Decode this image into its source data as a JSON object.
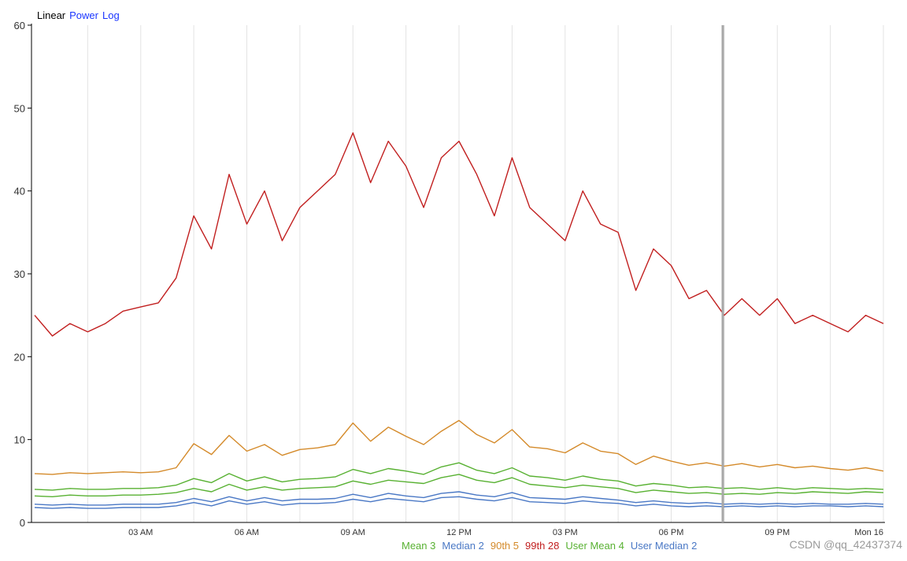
{
  "scale_switch": [
    {
      "label": "Linear",
      "active": true
    },
    {
      "label": "Power",
      "active": false
    },
    {
      "label": "Log",
      "active": false
    }
  ],
  "watermark": "CSDN @qq_42437374",
  "chart_data": {
    "type": "line",
    "title": "",
    "xlabel": "",
    "ylabel": "",
    "ylim": [
      0,
      60
    ],
    "yticks": [
      0,
      10,
      20,
      30,
      40,
      50,
      60
    ],
    "xlim_hours": [
      0,
      24
    ],
    "xtick_labels": [
      "03 AM",
      "06 AM",
      "09 AM",
      "12 PM",
      "03 PM",
      "06 PM",
      "09 PM",
      "Mon 16"
    ],
    "grid": true,
    "legend_placement": "bottom-right",
    "cursor_label": "",
    "series": [
      {
        "name": "Mean 3",
        "color": "#58b132",
        "values": [
          3.2,
          3.1,
          3.3,
          3.2,
          3.2,
          3.3,
          3.3,
          3.4,
          3.6,
          4.1,
          3.7,
          4.6,
          3.9,
          4.3,
          3.9,
          4.1,
          4.2,
          4.3,
          5.0,
          4.6,
          5.1,
          4.9,
          4.7,
          5.4,
          5.8,
          5.1,
          4.8,
          5.4,
          4.6,
          4.4,
          4.2,
          4.5,
          4.3,
          4.1,
          3.6,
          3.9,
          3.7,
          3.5,
          3.6,
          3.4,
          3.5,
          3.4,
          3.6,
          3.5,
          3.7,
          3.6,
          3.5,
          3.7,
          3.6
        ]
      },
      {
        "name": "Median 2",
        "color": "#4a78c5",
        "values": [
          1.8,
          1.7,
          1.8,
          1.7,
          1.7,
          1.8,
          1.8,
          1.8,
          2.0,
          2.4,
          2.0,
          2.6,
          2.2,
          2.5,
          2.1,
          2.3,
          2.3,
          2.4,
          2.8,
          2.5,
          2.9,
          2.7,
          2.5,
          3.0,
          3.1,
          2.8,
          2.6,
          3.0,
          2.5,
          2.4,
          2.3,
          2.6,
          2.4,
          2.3,
          2.0,
          2.2,
          2.0,
          1.9,
          2.0,
          1.9,
          2.0,
          1.9,
          2.0,
          1.9,
          2.0,
          2.0,
          1.9,
          2.0,
          1.9
        ]
      },
      {
        "name": "90th 5",
        "color": "#d48a2a",
        "values": [
          5.9,
          5.8,
          6.0,
          5.9,
          6.0,
          6.1,
          6.0,
          6.1,
          6.6,
          9.5,
          8.2,
          10.5,
          8.6,
          9.4,
          8.1,
          8.8,
          9.0,
          9.4,
          12.0,
          9.8,
          11.5,
          10.4,
          9.4,
          11.0,
          12.3,
          10.6,
          9.6,
          11.2,
          9.1,
          8.9,
          8.4,
          9.6,
          8.6,
          8.3,
          7.0,
          8.0,
          7.4,
          6.9,
          7.2,
          6.8,
          7.1,
          6.7,
          7.0,
          6.6,
          6.8,
          6.5,
          6.3,
          6.6,
          6.2
        ]
      },
      {
        "name": "99th 28",
        "color": "#c11f1f",
        "values": [
          25.0,
          22.5,
          24.0,
          23.0,
          24.0,
          25.5,
          26.0,
          26.5,
          29.5,
          37.0,
          33.0,
          42.0,
          36.0,
          40.0,
          34.0,
          38.0,
          40.0,
          42.0,
          47.0,
          41.0,
          46.0,
          43.0,
          38.0,
          44.0,
          46.0,
          42.0,
          37.0,
          44.0,
          38.0,
          36.0,
          34.0,
          40.0,
          36.0,
          35.0,
          28.0,
          33.0,
          31.0,
          27.0,
          28.0,
          25.0,
          27.0,
          25.0,
          27.0,
          24.0,
          25.0,
          24.0,
          23.0,
          25.0,
          24.0
        ]
      },
      {
        "name": "User Mean 4",
        "color": "#58b132",
        "values": [
          4.0,
          3.9,
          4.1,
          4.0,
          4.0,
          4.1,
          4.1,
          4.2,
          4.5,
          5.3,
          4.8,
          5.9,
          5.0,
          5.5,
          4.9,
          5.2,
          5.3,
          5.5,
          6.4,
          5.9,
          6.5,
          6.2,
          5.8,
          6.7,
          7.2,
          6.3,
          5.9,
          6.6,
          5.6,
          5.4,
          5.1,
          5.6,
          5.2,
          5.0,
          4.4,
          4.7,
          4.5,
          4.2,
          4.3,
          4.1,
          4.2,
          4.0,
          4.2,
          4.0,
          4.2,
          4.1,
          4.0,
          4.1,
          4.0
        ]
      },
      {
        "name": "User Median 2",
        "color": "#4a78c5",
        "values": [
          2.2,
          2.1,
          2.2,
          2.1,
          2.1,
          2.2,
          2.2,
          2.2,
          2.4,
          2.9,
          2.5,
          3.1,
          2.6,
          3.0,
          2.6,
          2.8,
          2.8,
          2.9,
          3.4,
          3.0,
          3.5,
          3.2,
          3.0,
          3.5,
          3.7,
          3.3,
          3.1,
          3.6,
          3.0,
          2.9,
          2.8,
          3.1,
          2.9,
          2.7,
          2.4,
          2.6,
          2.4,
          2.3,
          2.4,
          2.2,
          2.3,
          2.2,
          2.3,
          2.2,
          2.3,
          2.2,
          2.2,
          2.3,
          2.2
        ]
      }
    ]
  }
}
